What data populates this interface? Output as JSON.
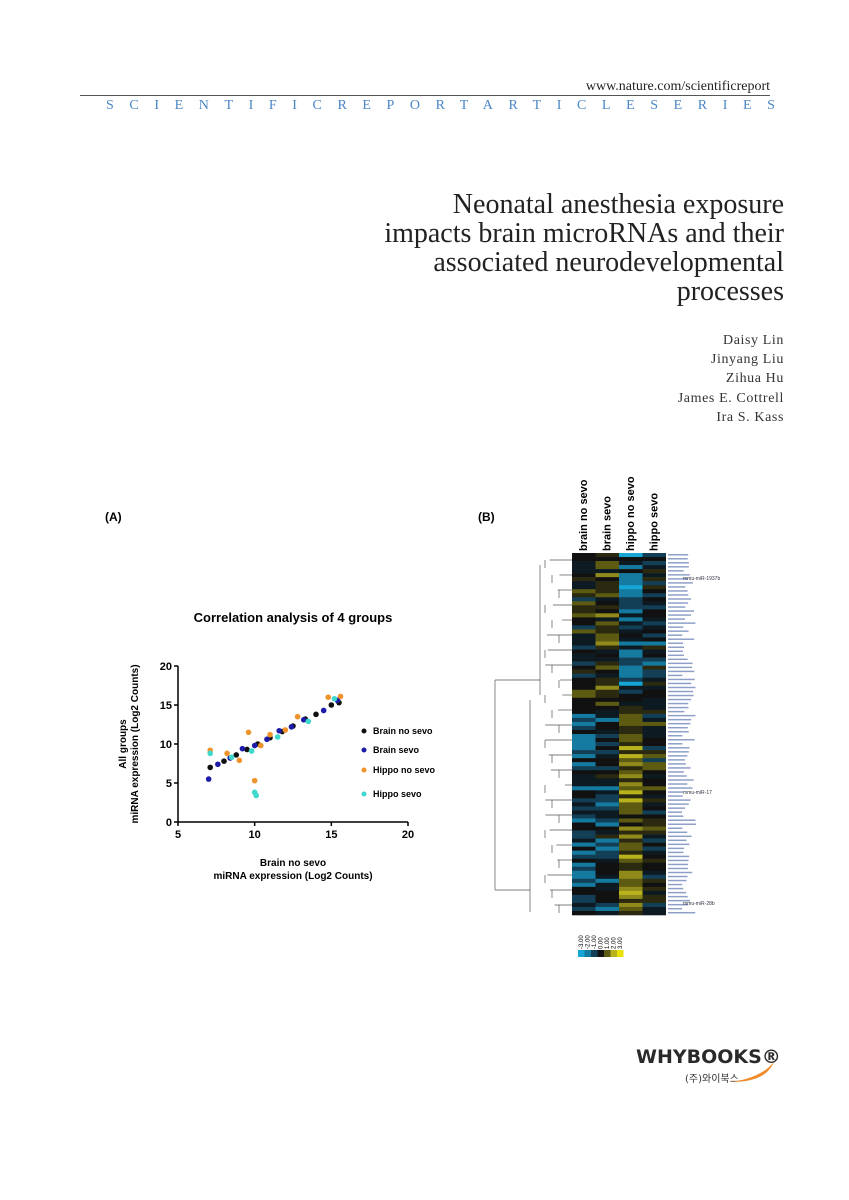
{
  "header": {
    "url": "www.nature.com/scientificreport",
    "series": "SCIENTIFICREPORTARTICLESERIES"
  },
  "title": [
    "Neonatal anesthesia exposure",
    "impacts brain microRNAs and their",
    "associated neurodevelopmental",
    "processes"
  ],
  "authors": [
    "Daisy Lin",
    "Jinyang Liu",
    "Zihua Hu",
    "James E. Cottrell",
    "Ira S. Kass"
  ],
  "figure_a": {
    "label": "(A)",
    "chart_data": {
      "type": "scatter",
      "title": "Correlation analysis of 4 groups",
      "y_label": [
        "All groups",
        "miRNA expression (Log2 Counts)"
      ],
      "x_label": [
        "Brain no sevo",
        "miRNA expression (Log2 Counts)"
      ],
      "xlim": [
        5,
        20
      ],
      "xticks": [
        5,
        10,
        15,
        20
      ],
      "ylim": [
        0,
        20
      ],
      "yticks": [
        0,
        5,
        10,
        15,
        20
      ],
      "series": [
        {
          "name": "Brain no sevo",
          "color": "#111111",
          "x": [
            7.1,
            8,
            8.8,
            9.5,
            10.2,
            11,
            11.8,
            12.5,
            13.3,
            14,
            15,
            15.5
          ],
          "values": [
            7,
            7.8,
            8.6,
            9.3,
            10,
            10.8,
            11.6,
            12.3,
            13.2,
            13.8,
            15,
            15.3
          ]
        },
        {
          "name": "Brain sevo",
          "color": "#1c1ca8",
          "x": [
            7,
            7.6,
            8.4,
            9.2,
            10,
            10.8,
            11.6,
            12.4,
            13.2,
            14.5,
            15.4
          ],
          "values": [
            5.5,
            7.4,
            8.2,
            9.4,
            9.8,
            10.6,
            11.7,
            12.2,
            13.1,
            14.3,
            15.6
          ]
        },
        {
          "name": "Hippo no sevo",
          "color": "#f0932b",
          "x": [
            7.1,
            8.2,
            9,
            9.6,
            10,
            10.4,
            11,
            12,
            12.8,
            14.8,
            15.6
          ],
          "values": [
            9.2,
            8.8,
            7.9,
            11.5,
            5.3,
            9.8,
            11.2,
            11.8,
            13.5,
            16,
            16.1
          ]
        },
        {
          "name": "Hippo sevo",
          "color": "#3fd8cc",
          "x": [
            7.1,
            8.5,
            9.8,
            10,
            10.1,
            11.5,
            13.5,
            15.2
          ],
          "values": [
            8.8,
            8.3,
            9.1,
            3.8,
            3.4,
            10.9,
            12.9,
            15.8
          ]
        }
      ]
    }
  },
  "figure_b": {
    "label": "(B)",
    "columns": [
      "brain no sevo",
      "brain sevo",
      "hippo no sevo",
      "hippo sevo"
    ],
    "row_labels": [
      "mmu-miR-1937b",
      "mmu-miR-17",
      "mmu-miR-28b"
    ],
    "colorbar": [
      "-3.00",
      "-2.00",
      "-1.00",
      "0.00",
      "1.00",
      "2.00",
      "3.00"
    ]
  },
  "publisher": {
    "name": "WHYBOOKS®",
    "korean": "(주)와이북스"
  }
}
